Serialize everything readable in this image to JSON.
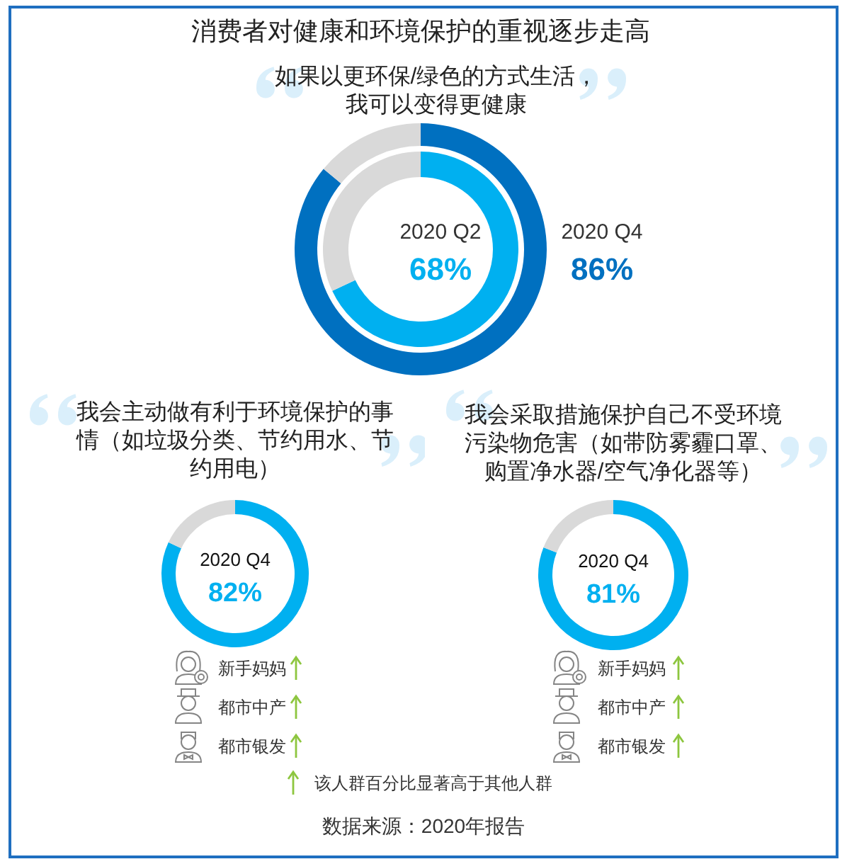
{
  "chart_data": [
    {
      "type": "donut",
      "title": "消费者对健康和环境保护的重视逐步走高",
      "subtitle": "如果以更环保/绿色的方式生活，我可以变得更健康",
      "categories": [
        null,
        null
      ],
      "series": [
        {
          "name": "2020 Q4",
          "values": [
            86,
            14
          ],
          "colors": [
            "#0070c0",
            "#d9d9d9"
          ],
          "value_labels": [
            "86%",
            null
          ]
        },
        {
          "name": "2020 Q2",
          "values": [
            68,
            32
          ],
          "colors": [
            "#00b0f0",
            "#d9d9d9"
          ],
          "value_labels": [
            "68%",
            null
          ]
        }
      ]
    },
    {
      "type": "donut",
      "title": "我会主动做有利于环境保护的事情（如垃圾分类、节约用水、节约用电）",
      "categories": [
        null,
        null
      ],
      "series": [
        {
          "name": "2020 Q4",
          "values": [
            82,
            18
          ],
          "colors": [
            "#00b0f0",
            "#d9d9d9"
          ],
          "value_labels": [
            "82%",
            null
          ]
        }
      ],
      "annotations": [
        "新手妈妈",
        "都市中产",
        "都市银发"
      ]
    },
    {
      "type": "donut",
      "title": "我会采取措施保护自己不受环境污染物危害（如带防雾霾口罩、购置净水器/空气净化器等）",
      "categories": [
        null,
        null
      ],
      "series": [
        {
          "name": "2020 Q4",
          "values": [
            81,
            19
          ],
          "colors": [
            "#00b0f0",
            "#d9d9d9"
          ],
          "value_labels": [
            "81%",
            null
          ]
        }
      ],
      "annotations": [
        "新手妈妈",
        "都市中产",
        "都市银发"
      ]
    },
    {
      "type": "other",
      "annotations": [
        "该人群百分比显著高于其他人群",
        "数据来源：2020年报告"
      ]
    }
  ]
}
